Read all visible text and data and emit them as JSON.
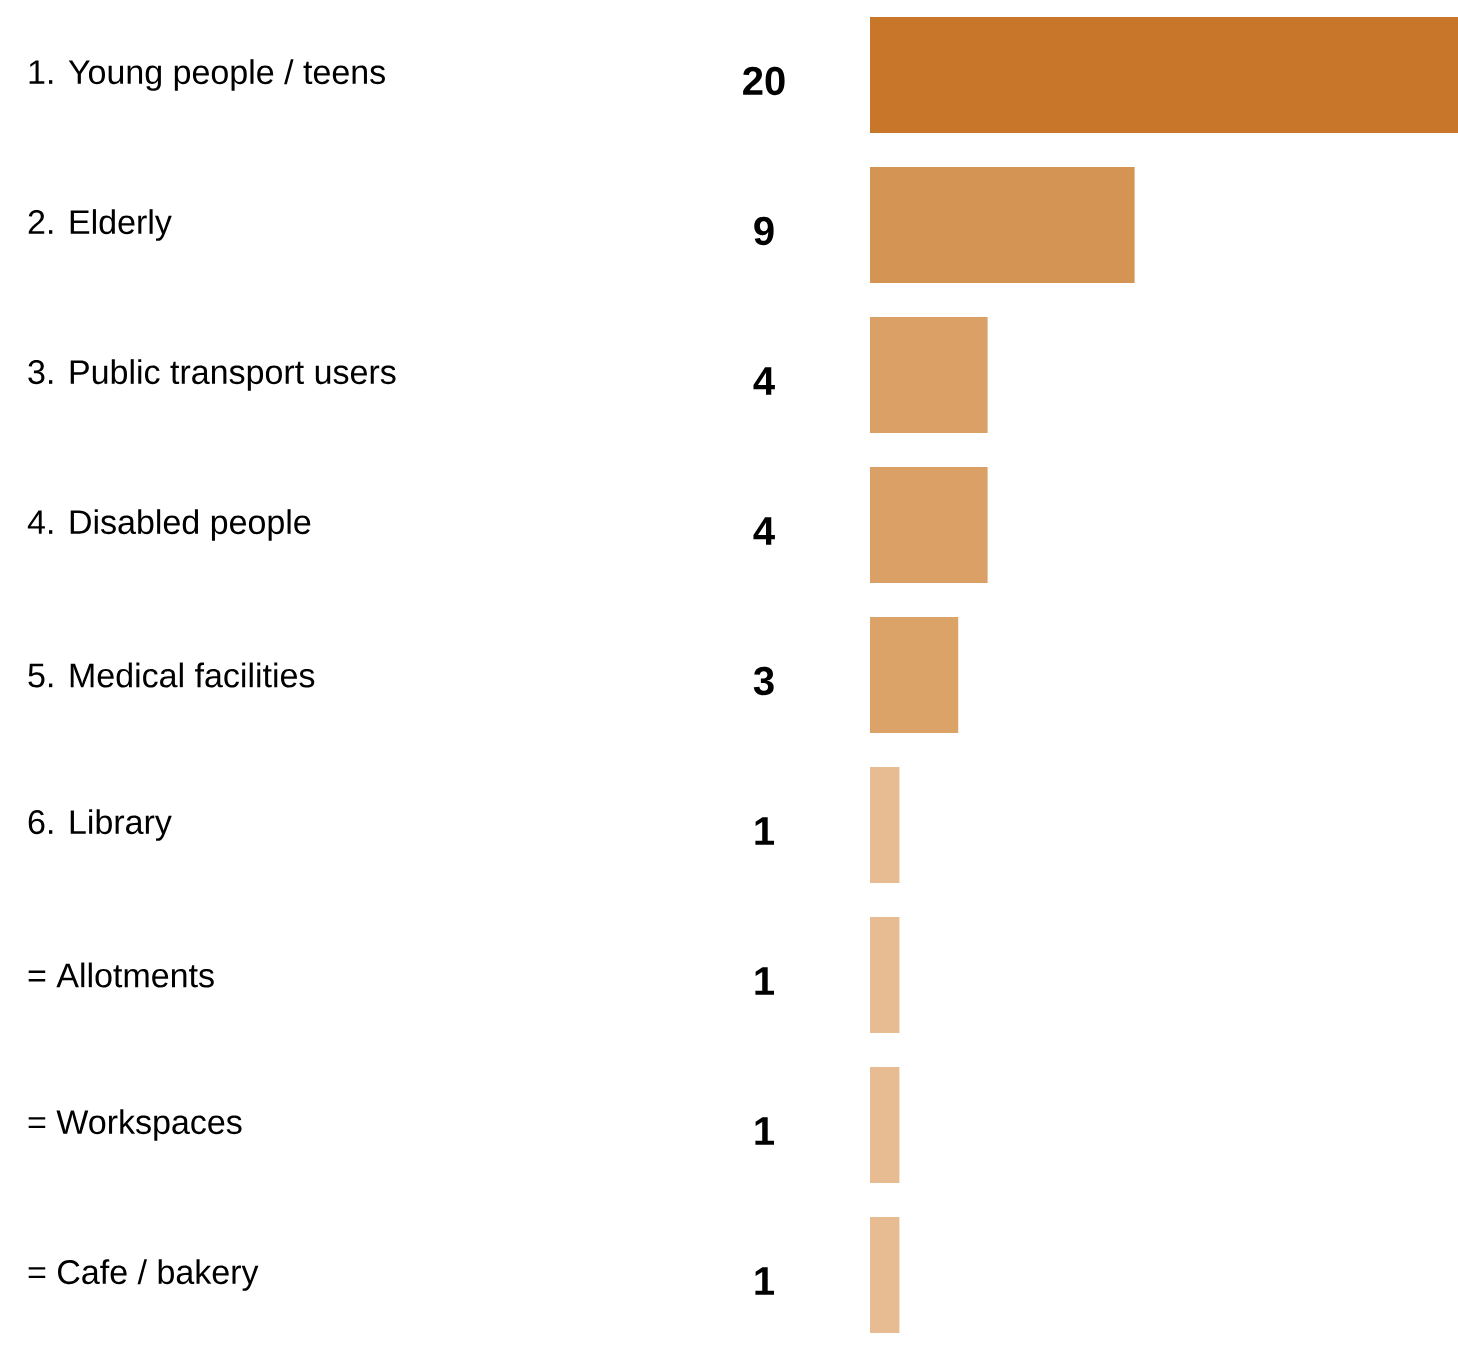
{
  "chart_data": {
    "type": "bar",
    "orientation": "horizontal",
    "data_labels": true,
    "categories": [
      "1. Young people / teens",
      "2. Elderly",
      "3. Public transport users",
      "4. Disabled people",
      "5. Medical facilities",
      "6. Library",
      "= Allotments",
      "= Workspaces",
      "= Cafe / bakery"
    ],
    "values": [
      20,
      9,
      4,
      4,
      3,
      1,
      1,
      1,
      1
    ],
    "colors": [
      "#c8772a",
      "#d49454",
      "#daa066",
      "#daa066",
      "#dba368",
      "#e8bc92",
      "#e8bc92",
      "#e8bc92",
      "#e8bc92"
    ]
  }
}
